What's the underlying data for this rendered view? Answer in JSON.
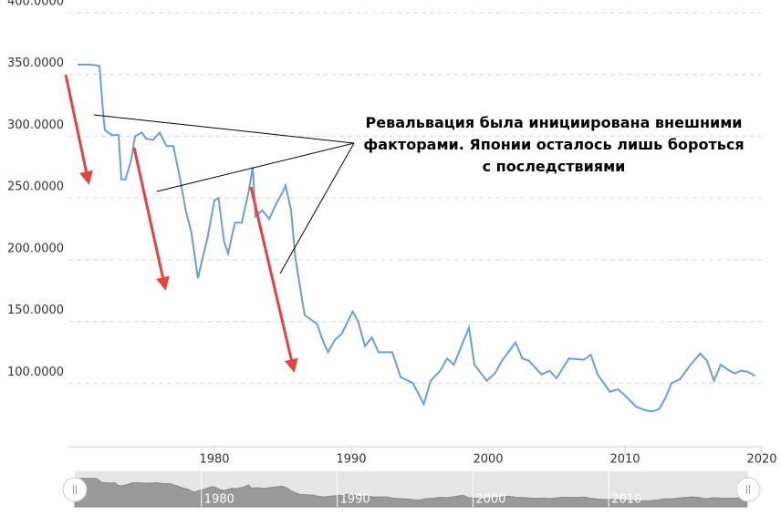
{
  "chart_data": {
    "type": "line",
    "annotation": "Ревальвация была инициирована внешними факторами. Японии осталось лишь бороться с последствиями",
    "color": "#6a9fd4",
    "grid": true,
    "x": [
      1970,
      1971.0,
      1971.6,
      1971.9,
      1972.0,
      1972.5,
      1973.0,
      1973.2,
      1973.5,
      1973.9,
      1974.2,
      1974.7,
      1975.0,
      1975.5,
      1976.0,
      1976.5,
      1977.0,
      1977.5,
      1977.9,
      1978.3,
      1978.8,
      1979.0,
      1979.5,
      1980.0,
      1980.3,
      1980.7,
      1981.0,
      1981.5,
      1982.0,
      1982.5,
      1982.8,
      1983.0,
      1983.5,
      1984.0,
      1984.5,
      1985.0,
      1985.2,
      1985.6,
      1985.9,
      1986.3,
      1986.6,
      1987.0,
      1987.5,
      1987.9,
      1988.3,
      1988.8,
      1989.3,
      1990.1,
      1990.5,
      1991.0,
      1991.5,
      1992.0,
      1993.0,
      1993.6,
      1994.5,
      1995.3,
      1995.8,
      1996.5,
      1997.0,
      1997.5,
      1998.6,
      1999.0,
      1999.9,
      2000.5,
      2001.0,
      2002.0,
      2002.5,
      2003.0,
      2003.9,
      2004.5,
      2005.0,
      2005.9,
      2007.0,
      2007.5,
      2008.0,
      2008.9,
      2009.5,
      2010.0,
      2010.8,
      2011.5,
      2012.0,
      2012.5,
      2013.0,
      2013.4,
      2014.0,
      2014.8,
      2015.5,
      2016.0,
      2016.5,
      2017.0,
      2017.5,
      2018.0,
      2018.5,
      2019.0,
      2019.5
    ],
    "values": [
      358,
      358,
      357,
      315,
      305,
      301,
      301,
      265,
      265,
      280,
      300,
      303,
      298,
      297,
      303,
      292,
      292,
      265,
      240,
      223,
      185,
      195,
      218,
      248,
      250,
      215,
      205,
      230,
      230,
      255,
      275,
      235,
      240,
      233,
      245,
      255,
      260,
      240,
      203,
      175,
      155,
      152,
      148,
      135,
      125,
      135,
      140,
      158,
      150,
      130,
      137,
      125,
      125,
      105,
      100,
      83,
      102,
      110,
      120,
      115,
      145,
      115,
      102,
      108,
      118,
      133,
      120,
      118,
      107,
      110,
      104,
      120,
      119,
      123,
      107,
      93,
      95,
      90,
      81,
      78,
      77,
      79,
      89,
      100,
      103,
      115,
      124,
      118,
      102,
      115,
      111,
      108,
      110,
      109,
      106
    ],
    "xlim": [
      1970,
      2020
    ],
    "xticks": [
      1980,
      1990,
      2000,
      2010,
      2020
    ],
    "ylim": [
      50,
      400
    ],
    "yticks": [
      {
        "value": 100,
        "label": "100.0000"
      },
      {
        "value": 150,
        "label": "150.0000"
      },
      {
        "value": 200,
        "label": "200.0000"
      },
      {
        "value": 250,
        "label": "250.0000"
      },
      {
        "value": 300,
        "label": "300.0000"
      },
      {
        "value": 350,
        "label": "350.0000"
      },
      {
        "value": 400,
        "label": "400.0000"
      }
    ]
  }
}
